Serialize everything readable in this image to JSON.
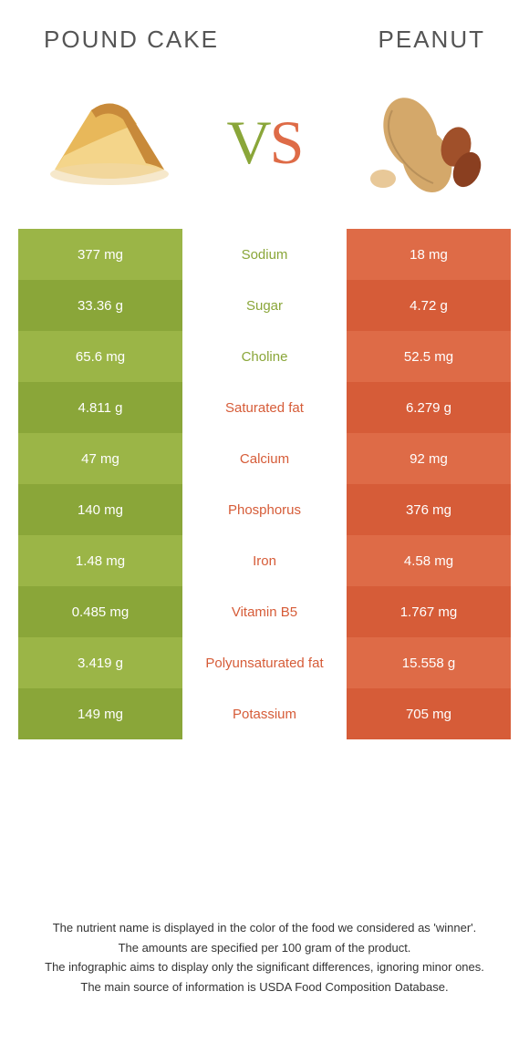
{
  "colors": {
    "left_food": "#9bb547",
    "left_food_alt": "#8aa639",
    "right_food": "#de6b47",
    "right_food_alt": "#d65c38",
    "mid_bg": "#ffffff",
    "title_text": "#555555",
    "footer_text": "#333333"
  },
  "foods": {
    "left": {
      "title": "POUND CAKE"
    },
    "right": {
      "title": "PEANUT"
    }
  },
  "vs": {
    "v": "V",
    "s": "S"
  },
  "rows": [
    {
      "left": "377 mg",
      "name": "Sodium",
      "right": "18 mg",
      "winner": "left"
    },
    {
      "left": "33.36 g",
      "name": "Sugar",
      "right": "4.72 g",
      "winner": "left"
    },
    {
      "left": "65.6 mg",
      "name": "Choline",
      "right": "52.5 mg",
      "winner": "left"
    },
    {
      "left": "4.811 g",
      "name": "Saturated fat",
      "right": "6.279 g",
      "winner": "right"
    },
    {
      "left": "47 mg",
      "name": "Calcium",
      "right": "92 mg",
      "winner": "right"
    },
    {
      "left": "140 mg",
      "name": "Phosphorus",
      "right": "376 mg",
      "winner": "right"
    },
    {
      "left": "1.48 mg",
      "name": "Iron",
      "right": "4.58 mg",
      "winner": "right"
    },
    {
      "left": "0.485 mg",
      "name": "Vitamin B5",
      "right": "1.767 mg",
      "winner": "right"
    },
    {
      "left": "3.419 g",
      "name": "Polyunsaturated fat",
      "right": "15.558 g",
      "winner": "right"
    },
    {
      "left": "149 mg",
      "name": "Potassium",
      "right": "705 mg",
      "winner": "right"
    }
  ],
  "footer": [
    "The nutrient name is displayed in the color of the food we considered as 'winner'.",
    "The amounts are specified per 100 gram of the product.",
    "The infographic aims to display only the significant differences, ignoring minor ones.",
    "The main source of information is USDA Food Composition Database."
  ]
}
